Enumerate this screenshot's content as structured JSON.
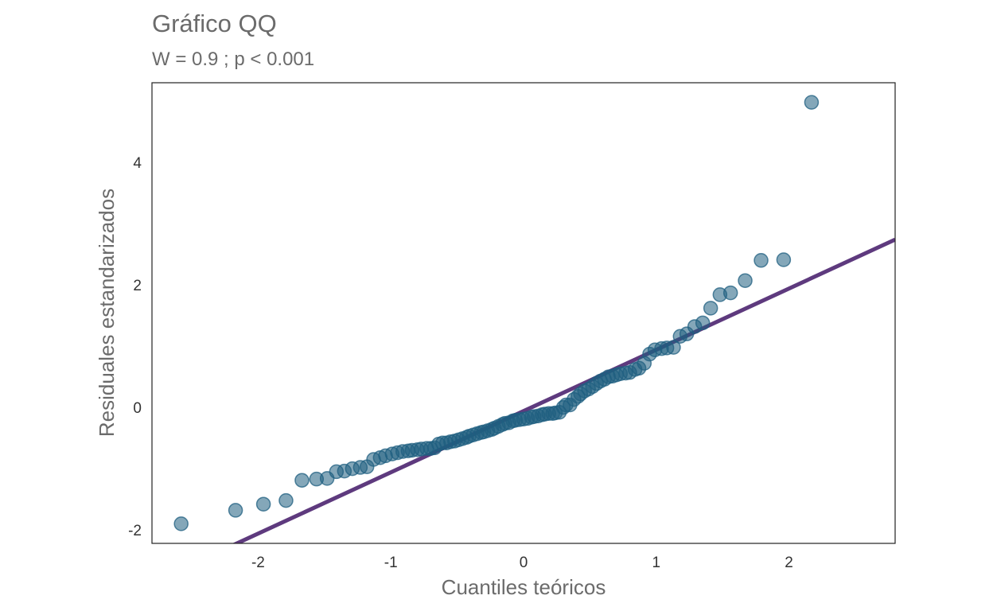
{
  "chart_data": {
    "type": "scatter",
    "title": "Gráfico QQ",
    "subtitle": "W =  0.9 ; p  < 0.001",
    "xlabel": "Cuantiles teóricos",
    "ylabel": "Residuales estandarizados",
    "xlim": [
      -2.8,
      2.8
    ],
    "ylim": [
      -2.22,
      5.3
    ],
    "x_ticks": [
      {
        "value": -2,
        "label": "-2"
      },
      {
        "value": -1,
        "label": "-1"
      },
      {
        "value": 0,
        "label": "0"
      },
      {
        "value": 1,
        "label": "1"
      },
      {
        "value": 2,
        "label": "2"
      }
    ],
    "y_ticks": [
      {
        "value": -2,
        "label": "-2"
      },
      {
        "value": 0,
        "label": "0"
      },
      {
        "value": 2,
        "label": "2"
      },
      {
        "value": 4,
        "label": "4"
      }
    ],
    "grid": false,
    "point_color": "#1f5f80",
    "line_color": "#5e3a7e",
    "reference_line": {
      "slope": 1.0,
      "intercept": -0.06
    },
    "points": [
      {
        "x": -2.58,
        "y": -1.9
      },
      {
        "x": -2.17,
        "y": -1.68
      },
      {
        "x": -1.96,
        "y": -1.58
      },
      {
        "x": -1.79,
        "y": -1.52
      },
      {
        "x": -1.67,
        "y": -1.19
      },
      {
        "x": -1.56,
        "y": -1.17
      },
      {
        "x": -1.48,
        "y": -1.16
      },
      {
        "x": -1.41,
        "y": -1.05
      },
      {
        "x": -1.35,
        "y": -1.04
      },
      {
        "x": -1.29,
        "y": -1.0
      },
      {
        "x": -1.23,
        "y": -0.98
      },
      {
        "x": -1.18,
        "y": -0.97
      },
      {
        "x": -1.13,
        "y": -0.85
      },
      {
        "x": -1.08,
        "y": -0.82
      },
      {
        "x": -1.04,
        "y": -0.79
      },
      {
        "x": -0.99,
        "y": -0.76
      },
      {
        "x": -0.95,
        "y": -0.74
      },
      {
        "x": -0.91,
        "y": -0.72
      },
      {
        "x": -0.87,
        "y": -0.71
      },
      {
        "x": -0.84,
        "y": -0.7
      },
      {
        "x": -0.8,
        "y": -0.69
      },
      {
        "x": -0.77,
        "y": -0.68
      },
      {
        "x": -0.73,
        "y": -0.67
      },
      {
        "x": -0.7,
        "y": -0.67
      },
      {
        "x": -0.67,
        "y": -0.66
      },
      {
        "x": -0.64,
        "y": -0.6
      },
      {
        "x": -0.61,
        "y": -0.58
      },
      {
        "x": -0.58,
        "y": -0.58
      },
      {
        "x": -0.55,
        "y": -0.56
      },
      {
        "x": -0.52,
        "y": -0.55
      },
      {
        "x": -0.49,
        "y": -0.53
      },
      {
        "x": -0.46,
        "y": -0.51
      },
      {
        "x": -0.43,
        "y": -0.49
      },
      {
        "x": -0.41,
        "y": -0.47
      },
      {
        "x": -0.38,
        "y": -0.45
      },
      {
        "x": -0.35,
        "y": -0.43
      },
      {
        "x": -0.32,
        "y": -0.41
      },
      {
        "x": -0.3,
        "y": -0.4
      },
      {
        "x": -0.27,
        "y": -0.38
      },
      {
        "x": -0.24,
        "y": -0.36
      },
      {
        "x": -0.22,
        "y": -0.34
      },
      {
        "x": -0.19,
        "y": -0.31
      },
      {
        "x": -0.16,
        "y": -0.28
      },
      {
        "x": -0.14,
        "y": -0.26
      },
      {
        "x": -0.11,
        "y": -0.25
      },
      {
        "x": -0.08,
        "y": -0.22
      },
      {
        "x": -0.06,
        "y": -0.21
      },
      {
        "x": -0.03,
        "y": -0.2
      },
      {
        "x": 0.0,
        "y": -0.19
      },
      {
        "x": 0.03,
        "y": -0.18
      },
      {
        "x": 0.06,
        "y": -0.16
      },
      {
        "x": 0.08,
        "y": -0.15
      },
      {
        "x": 0.11,
        "y": -0.14
      },
      {
        "x": 0.14,
        "y": -0.12
      },
      {
        "x": 0.16,
        "y": -0.11
      },
      {
        "x": 0.19,
        "y": -0.1
      },
      {
        "x": 0.22,
        "y": -0.1
      },
      {
        "x": 0.24,
        "y": -0.09
      },
      {
        "x": 0.27,
        "y": -0.08
      },
      {
        "x": 0.3,
        "y": 0.0
      },
      {
        "x": 0.32,
        "y": 0.04
      },
      {
        "x": 0.35,
        "y": 0.04
      },
      {
        "x": 0.38,
        "y": 0.13
      },
      {
        "x": 0.41,
        "y": 0.18
      },
      {
        "x": 0.43,
        "y": 0.22
      },
      {
        "x": 0.46,
        "y": 0.27
      },
      {
        "x": 0.49,
        "y": 0.3
      },
      {
        "x": 0.52,
        "y": 0.34
      },
      {
        "x": 0.55,
        "y": 0.39
      },
      {
        "x": 0.58,
        "y": 0.43
      },
      {
        "x": 0.61,
        "y": 0.46
      },
      {
        "x": 0.64,
        "y": 0.5
      },
      {
        "x": 0.67,
        "y": 0.51
      },
      {
        "x": 0.7,
        "y": 0.53
      },
      {
        "x": 0.73,
        "y": 0.55
      },
      {
        "x": 0.77,
        "y": 0.56
      },
      {
        "x": 0.8,
        "y": 0.57
      },
      {
        "x": 0.84,
        "y": 0.62
      },
      {
        "x": 0.87,
        "y": 0.64
      },
      {
        "x": 0.91,
        "y": 0.72
      },
      {
        "x": 0.95,
        "y": 0.87
      },
      {
        "x": 0.99,
        "y": 0.94
      },
      {
        "x": 1.04,
        "y": 0.96
      },
      {
        "x": 1.08,
        "y": 0.97
      },
      {
        "x": 1.13,
        "y": 0.98
      },
      {
        "x": 1.18,
        "y": 1.16
      },
      {
        "x": 1.23,
        "y": 1.2
      },
      {
        "x": 1.29,
        "y": 1.32
      },
      {
        "x": 1.35,
        "y": 1.38
      },
      {
        "x": 1.41,
        "y": 1.62
      },
      {
        "x": 1.48,
        "y": 1.84
      },
      {
        "x": 1.56,
        "y": 1.87
      },
      {
        "x": 1.67,
        "y": 2.07
      },
      {
        "x": 1.79,
        "y": 2.4
      },
      {
        "x": 1.96,
        "y": 2.41
      },
      {
        "x": 2.17,
        "y": 4.98
      }
    ]
  }
}
